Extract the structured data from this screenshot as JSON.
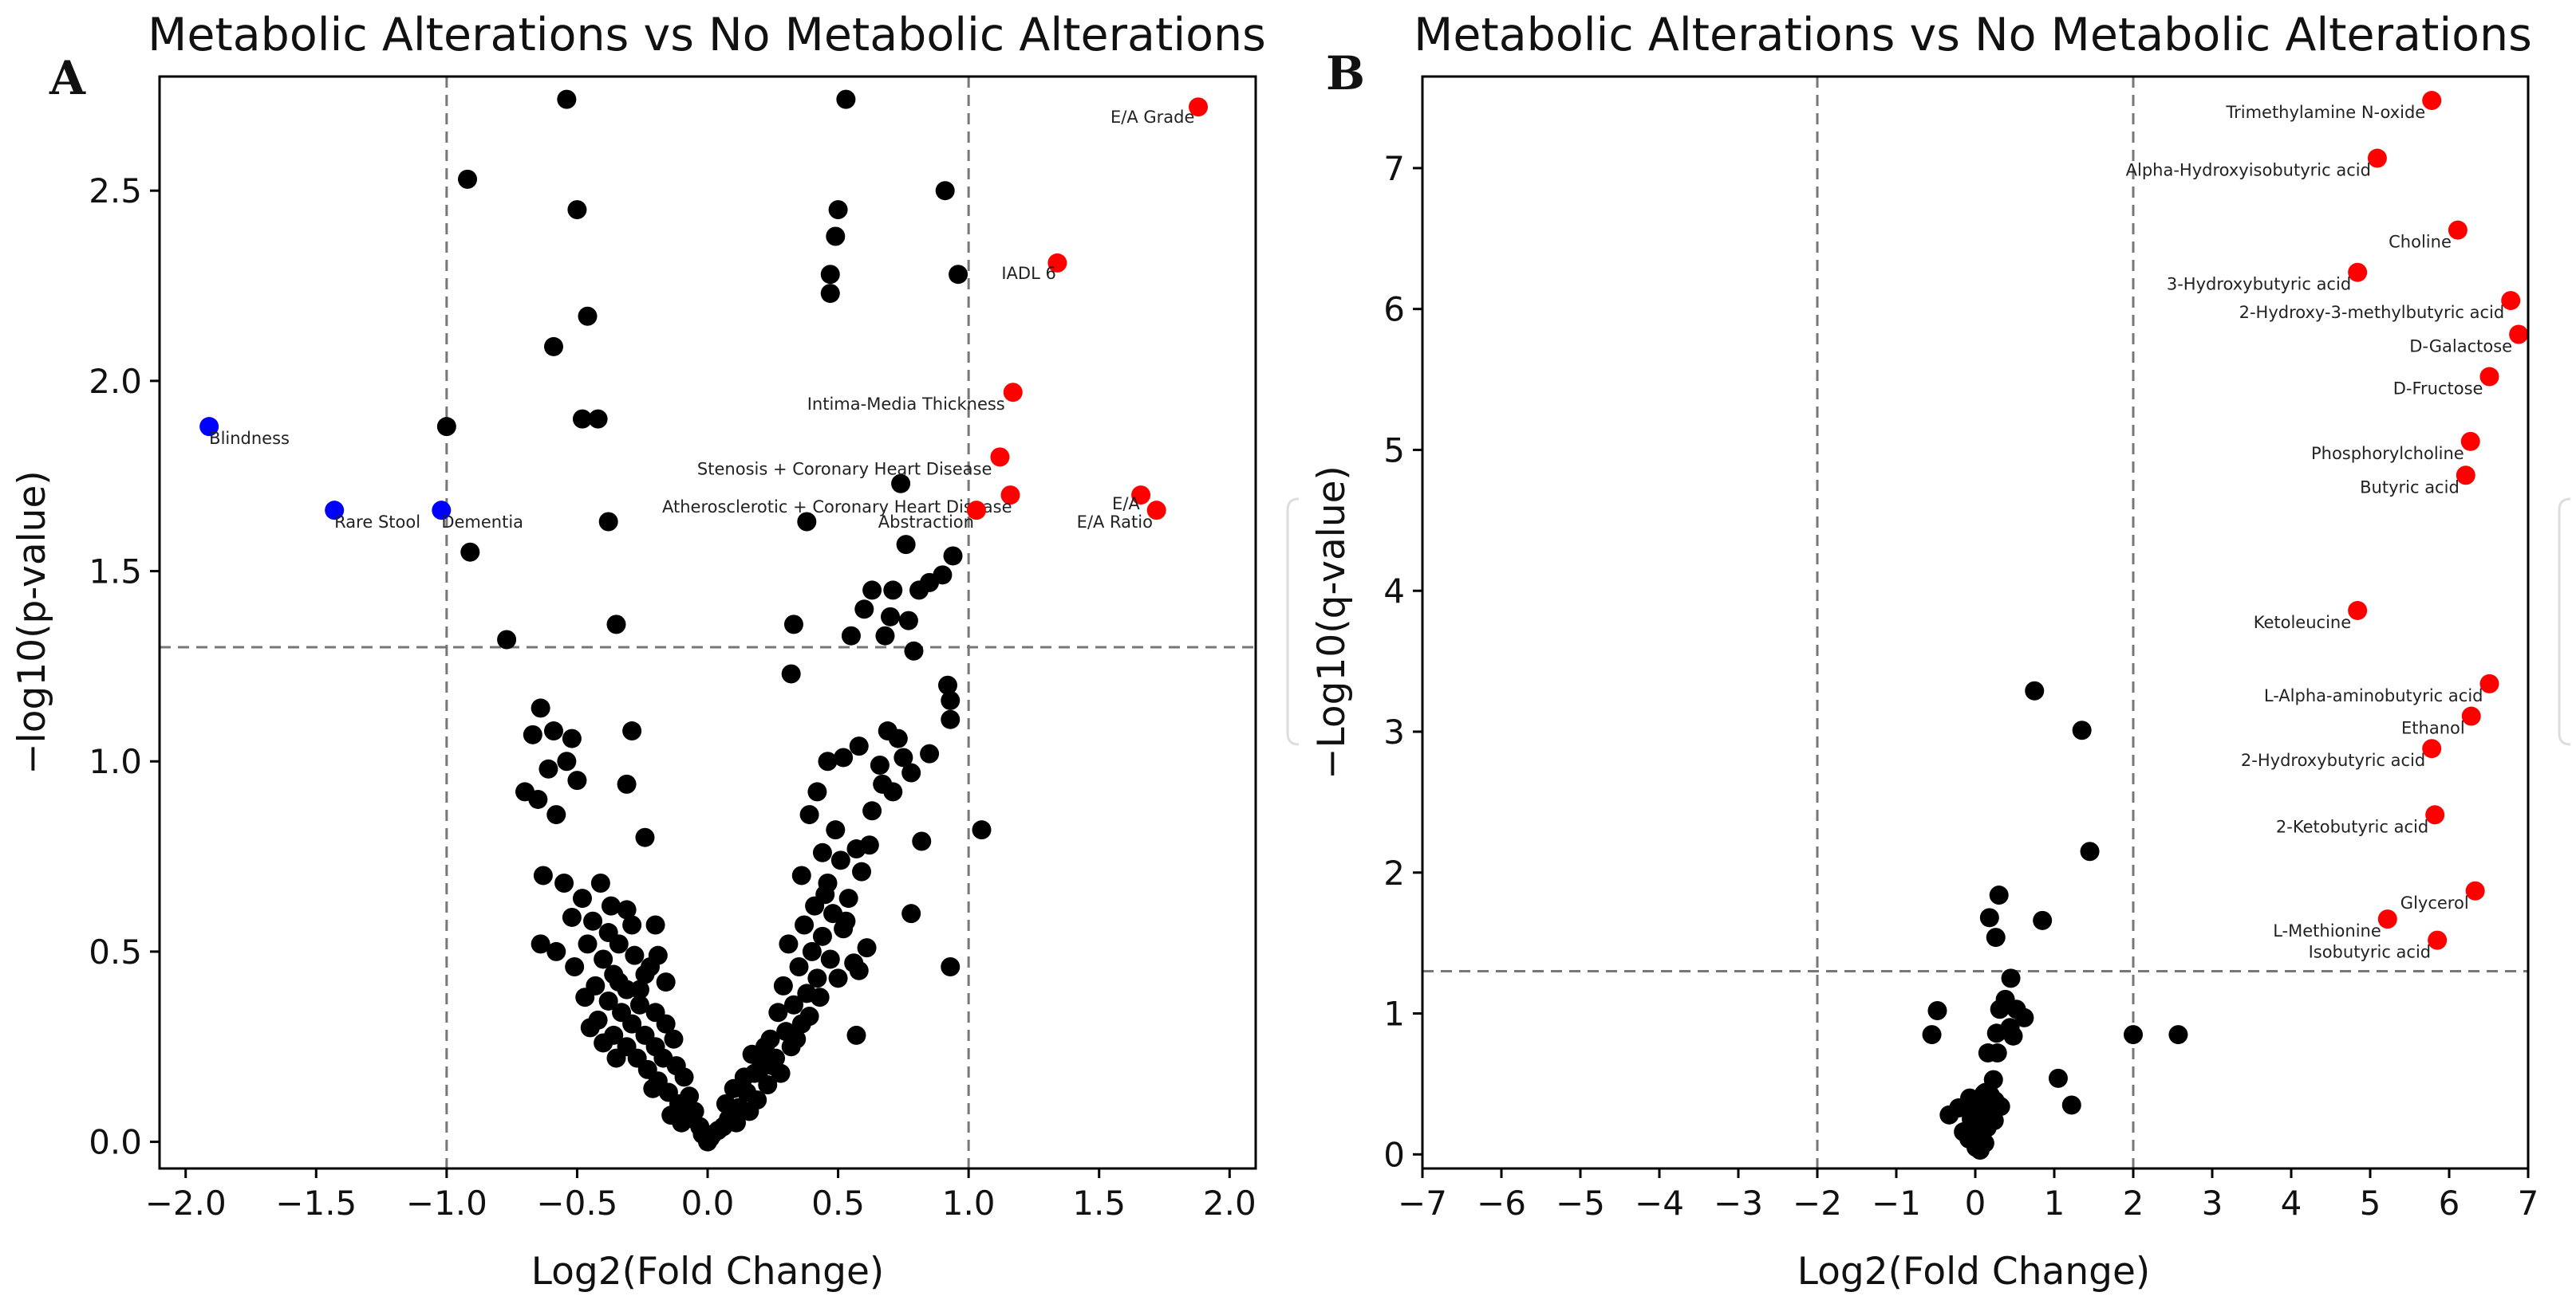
{
  "chart_data": [
    {
      "type": "scatter",
      "panel_label": "A",
      "title": "Metabolic Alterations vs No Metabolic Alterations",
      "xlabel": "Log2(Fold Change)",
      "ylabel": "−log10(p-value)",
      "xlim": [
        -2.1,
        2.1
      ],
      "ylim": [
        -0.07,
        2.8
      ],
      "xticks": [
        -2.0,
        -1.5,
        -1.0,
        -0.5,
        0.0,
        0.5,
        1.0,
        1.5,
        2.0
      ],
      "xtick_labels": [
        "−2.0",
        "−1.5",
        "−1.0",
        "−0.5",
        "0.0",
        "0.5",
        "1.0",
        "1.5",
        "2.0"
      ],
      "yticks": [
        0.0,
        0.5,
        1.0,
        1.5,
        2.0,
        2.5
      ],
      "ytick_labels": [
        "0.0",
        "0.5",
        "1.0",
        "1.5",
        "2.0",
        "2.5"
      ],
      "threshold_x": [
        -1.0,
        1.0
      ],
      "threshold_y": 1.3,
      "colors": {
        "up": "#ff0000",
        "down": "#0000ff",
        "ns": "#000000",
        "threshold": "#777777"
      },
      "labeled_points": [
        {
          "x": 1.88,
          "y": 2.72,
          "group": "up",
          "label": "E/A Grade"
        },
        {
          "x": 1.34,
          "y": 2.31,
          "group": "up",
          "label": "IADL 6"
        },
        {
          "x": 1.17,
          "y": 1.97,
          "group": "up",
          "label": "Intima-Media Thickness"
        },
        {
          "x": 1.12,
          "y": 1.8,
          "group": "up",
          "label": "Stenosis + Coronary Heart Disease"
        },
        {
          "x": 1.16,
          "y": 1.7,
          "group": "up",
          "label": "Atherosclerotic + Coronary Heart Disease"
        },
        {
          "x": 1.03,
          "y": 1.66,
          "group": "up",
          "label": "Abstraction"
        },
        {
          "x": 1.66,
          "y": 1.7,
          "group": "up",
          "label": "E/A"
        },
        {
          "x": 1.72,
          "y": 1.66,
          "group": "up",
          "label": "E/A Ratio"
        },
        {
          "x": -1.91,
          "y": 1.88,
          "group": "down",
          "label": "Blindness"
        },
        {
          "x": -1.43,
          "y": 1.66,
          "group": "down",
          "label": "Rare Stool"
        },
        {
          "x": -1.02,
          "y": 1.66,
          "group": "down",
          "label": "Dementia"
        }
      ],
      "other_points": [
        [
          -0.54,
          2.74
        ],
        [
          0.53,
          2.74
        ],
        [
          -0.92,
          2.53
        ],
        [
          0.91,
          2.5
        ],
        [
          -0.5,
          2.45
        ],
        [
          0.5,
          2.45
        ],
        [
          0.49,
          2.38
        ],
        [
          -0.46,
          2.17
        ],
        [
          0.47,
          2.28
        ],
        [
          0.96,
          2.28
        ],
        [
          0.47,
          2.23
        ],
        [
          -0.59,
          2.09
        ],
        [
          -1.0,
          1.88
        ],
        [
          -0.48,
          1.9
        ],
        [
          -0.42,
          1.9
        ],
        [
          0.74,
          1.73
        ],
        [
          -0.38,
          1.63
        ],
        [
          0.38,
          1.63
        ],
        [
          -0.91,
          1.55
        ],
        [
          0.94,
          1.54
        ],
        [
          0.76,
          1.57
        ],
        [
          0.9,
          1.49
        ],
        [
          0.85,
          1.47
        ],
        [
          0.81,
          1.45
        ],
        [
          0.71,
          1.45
        ],
        [
          0.63,
          1.45
        ],
        [
          0.6,
          1.4
        ],
        [
          0.7,
          1.38
        ],
        [
          0.77,
          1.37
        ],
        [
          0.68,
          1.33
        ],
        [
          0.55,
          1.33
        ],
        [
          -0.77,
          1.32
        ],
        [
          -0.35,
          1.36
        ],
        [
          0.33,
          1.36
        ],
        [
          0.79,
          1.29
        ],
        [
          0.32,
          1.23
        ],
        [
          0.92,
          1.2
        ],
        [
          0.93,
          1.16
        ],
        [
          0.93,
          1.11
        ],
        [
          0.69,
          1.08
        ],
        [
          0.58,
          1.04
        ],
        [
          0.73,
          1.06
        ],
        [
          0.85,
          1.02
        ],
        [
          0.52,
          1.01
        ],
        [
          0.46,
          1.0
        ],
        [
          0.66,
          0.99
        ],
        [
          0.78,
          0.97
        ],
        [
          0.42,
          0.92
        ],
        [
          0.71,
          0.92
        ],
        [
          0.39,
          0.86
        ],
        [
          0.63,
          0.87
        ],
        [
          0.49,
          0.82
        ],
        [
          0.57,
          0.77
        ],
        [
          0.44,
          0.76
        ],
        [
          0.51,
          0.74
        ],
        [
          0.59,
          0.71
        ],
        [
          0.36,
          0.7
        ],
        [
          0.46,
          0.68
        ],
        [
          0.54,
          0.64
        ],
        [
          0.41,
          0.62
        ],
        [
          0.48,
          0.6
        ],
        [
          0.37,
          0.57
        ],
        [
          0.52,
          0.56
        ],
        [
          0.44,
          0.54
        ],
        [
          0.31,
          0.52
        ],
        [
          0.4,
          0.5
        ],
        [
          0.47,
          0.48
        ],
        [
          0.35,
          0.46
        ],
        [
          0.42,
          0.43
        ],
        [
          0.29,
          0.41
        ],
        [
          0.38,
          0.39
        ],
        [
          0.33,
          0.36
        ],
        [
          0.27,
          0.34
        ],
        [
          0.36,
          0.31
        ],
        [
          0.3,
          0.29
        ],
        [
          0.24,
          0.27
        ],
        [
          0.32,
          0.25
        ],
        [
          0.26,
          0.22
        ],
        [
          0.21,
          0.21
        ],
        [
          0.28,
          0.18
        ],
        [
          0.18,
          0.18
        ],
        [
          0.23,
          0.15
        ],
        [
          0.15,
          0.13
        ],
        [
          0.19,
          0.11
        ],
        [
          0.12,
          0.09
        ],
        [
          0.16,
          0.08
        ],
        [
          0.08,
          0.06
        ],
        [
          0.11,
          0.05
        ],
        [
          0.06,
          0.04
        ],
        [
          0.04,
          0.03
        ],
        [
          0.02,
          0.02
        ],
        [
          0.01,
          0.01
        ],
        [
          0.0,
          0.0
        ],
        [
          0.07,
          0.1
        ],
        [
          0.1,
          0.14
        ],
        [
          0.14,
          0.17
        ],
        [
          0.2,
          0.19
        ],
        [
          0.25,
          0.2
        ],
        [
          0.17,
          0.23
        ],
        [
          0.22,
          0.25
        ],
        [
          0.34,
          0.27
        ],
        [
          0.39,
          0.33
        ],
        [
          0.43,
          0.38
        ],
        [
          0.5,
          0.43
        ],
        [
          0.56,
          0.47
        ],
        [
          0.61,
          0.51
        ],
        [
          0.53,
          0.58
        ],
        [
          0.45,
          0.65
        ],
        [
          0.62,
          0.78
        ],
        [
          0.67,
          0.94
        ],
        [
          0.75,
          1.01
        ],
        [
          0.82,
          0.79
        ],
        [
          1.05,
          0.82
        ],
        [
          0.93,
          0.46
        ],
        [
          0.78,
          0.6
        ],
        [
          0.58,
          0.45
        ],
        [
          0.57,
          0.28
        ],
        [
          -0.64,
          1.14
        ],
        [
          -0.67,
          1.07
        ],
        [
          -0.59,
          1.08
        ],
        [
          -0.52,
          1.06
        ],
        [
          -0.29,
          1.08
        ],
        [
          -0.54,
          1.0
        ],
        [
          -0.61,
          0.98
        ],
        [
          -0.7,
          0.92
        ],
        [
          -0.5,
          0.95
        ],
        [
          -0.31,
          0.94
        ],
        [
          -0.65,
          0.9
        ],
        [
          -0.58,
          0.86
        ],
        [
          -0.24,
          0.8
        ],
        [
          -0.63,
          0.7
        ],
        [
          -0.55,
          0.68
        ],
        [
          -0.41,
          0.68
        ],
        [
          -0.48,
          0.64
        ],
        [
          -0.37,
          0.62
        ],
        [
          -0.31,
          0.61
        ],
        [
          -0.52,
          0.59
        ],
        [
          -0.44,
          0.58
        ],
        [
          -0.29,
          0.57
        ],
        [
          -0.38,
          0.55
        ],
        [
          -0.2,
          0.57
        ],
        [
          -0.46,
          0.52
        ],
        [
          -0.34,
          0.52
        ],
        [
          -0.64,
          0.52
        ],
        [
          -0.58,
          0.5
        ],
        [
          -0.28,
          0.49
        ],
        [
          -0.4,
          0.48
        ],
        [
          -0.19,
          0.49
        ],
        [
          -0.51,
          0.46
        ],
        [
          -0.36,
          0.44
        ],
        [
          -0.24,
          0.44
        ],
        [
          -0.43,
          0.41
        ],
        [
          -0.31,
          0.4
        ],
        [
          -0.16,
          0.42
        ],
        [
          -0.47,
          0.38
        ],
        [
          -0.38,
          0.37
        ],
        [
          -0.26,
          0.36
        ],
        [
          -0.33,
          0.34
        ],
        [
          -0.2,
          0.34
        ],
        [
          -0.42,
          0.32
        ],
        [
          -0.29,
          0.31
        ],
        [
          -0.16,
          0.31
        ],
        [
          -0.36,
          0.28
        ],
        [
          -0.24,
          0.28
        ],
        [
          -0.31,
          0.25
        ],
        [
          -0.2,
          0.25
        ],
        [
          -0.13,
          0.27
        ],
        [
          -0.27,
          0.22
        ],
        [
          -0.17,
          0.22
        ],
        [
          -0.23,
          0.19
        ],
        [
          -0.12,
          0.2
        ],
        [
          -0.19,
          0.16
        ],
        [
          -0.09,
          0.17
        ],
        [
          -0.15,
          0.13
        ],
        [
          -0.07,
          0.12
        ],
        [
          -0.11,
          0.1
        ],
        [
          -0.05,
          0.08
        ],
        [
          -0.08,
          0.06
        ],
        [
          -0.03,
          0.04
        ],
        [
          -0.02,
          0.02
        ],
        [
          -0.22,
          0.46
        ],
        [
          -0.26,
          0.4
        ],
        [
          -0.34,
          0.42
        ],
        [
          -0.4,
          0.26
        ],
        [
          -0.45,
          0.3
        ],
        [
          -0.35,
          0.22
        ],
        [
          -0.21,
          0.14
        ],
        [
          -0.14,
          0.07
        ],
        [
          -0.1,
          0.05
        ]
      ]
    },
    {
      "type": "scatter",
      "panel_label": "B",
      "title": "Metabolic Alterations vs No Metabolic Alterations",
      "xlabel": "Log2(Fold Change)",
      "ylabel": "−Log10(q-value)",
      "xlim": [
        -7,
        7
      ],
      "ylim": [
        -0.1,
        7.65
      ],
      "xticks": [
        -7,
        -6,
        -5,
        -4,
        -3,
        -2,
        -1,
        0,
        1,
        2,
        3,
        4,
        5,
        6,
        7
      ],
      "xtick_labels": [
        "−7",
        "−6",
        "−5",
        "−4",
        "−3",
        "−2",
        "−1",
        "0",
        "1",
        "2",
        "3",
        "4",
        "5",
        "6",
        "7"
      ],
      "yticks": [
        0,
        1,
        2,
        3,
        4,
        5,
        6,
        7
      ],
      "ytick_labels": [
        "0",
        "1",
        "2",
        "3",
        "4",
        "5",
        "6",
        "7"
      ],
      "threshold_x": [
        -2,
        2
      ],
      "threshold_y": 1.3,
      "colors": {
        "up": "#ff0000",
        "down": "#0000ff",
        "ns": "#000000",
        "threshold": "#777777"
      },
      "labeled_points": [
        {
          "x": 5.78,
          "y": 7.48,
          "group": "up",
          "label": "Trimethylamine N-oxide"
        },
        {
          "x": 5.09,
          "y": 7.07,
          "group": "up",
          "label": "Alpha-Hydroxyisobutyric acid"
        },
        {
          "x": 6.11,
          "y": 6.56,
          "group": "up",
          "label": "Choline"
        },
        {
          "x": 4.84,
          "y": 6.26,
          "group": "up",
          "label": "3-Hydroxybutyric acid"
        },
        {
          "x": 6.78,
          "y": 6.06,
          "group": "up",
          "label": "2-Hydroxy-3-methylbutyric acid"
        },
        {
          "x": 6.88,
          "y": 5.82,
          "group": "up",
          "label": "D-Galactose"
        },
        {
          "x": 6.51,
          "y": 5.52,
          "group": "up",
          "label": "D-Fructose"
        },
        {
          "x": 6.27,
          "y": 5.06,
          "group": "up",
          "label": "Phosphorylcholine"
        },
        {
          "x": 6.21,
          "y": 4.82,
          "group": "up",
          "label": "Butyric acid"
        },
        {
          "x": 4.84,
          "y": 3.86,
          "group": "up",
          "label": "Ketoleucine"
        },
        {
          "x": 6.51,
          "y": 3.34,
          "group": "up",
          "label": "L-Alpha-aminobutyric acid"
        },
        {
          "x": 6.28,
          "y": 3.11,
          "group": "up",
          "label": "Ethanol"
        },
        {
          "x": 5.78,
          "y": 2.88,
          "group": "up",
          "label": "2-Hydroxybutyric acid"
        },
        {
          "x": 5.82,
          "y": 2.41,
          "group": "up",
          "label": "2-Ketobutyric acid"
        },
        {
          "x": 6.33,
          "y": 1.87,
          "group": "up",
          "label": "Glycerol"
        },
        {
          "x": 5.22,
          "y": 1.67,
          "group": "up",
          "label": "L-Methionine"
        },
        {
          "x": 5.85,
          "y": 1.52,
          "group": "up",
          "label": "Isobutyric acid"
        }
      ],
      "other_points": [
        [
          0.75,
          3.29
        ],
        [
          1.35,
          3.01
        ],
        [
          1.45,
          2.15
        ],
        [
          0.3,
          1.84
        ],
        [
          0.85,
          1.66
        ],
        [
          0.18,
          1.68
        ],
        [
          0.26,
          1.54
        ],
        [
          0.45,
          1.25
        ],
        [
          0.38,
          1.1
        ],
        [
          0.31,
          1.03
        ],
        [
          0.52,
          1.03
        ],
        [
          0.62,
          0.97
        ],
        [
          0.44,
          0.9
        ],
        [
          0.27,
          0.86
        ],
        [
          0.48,
          0.84
        ],
        [
          -0.48,
          1.02
        ],
        [
          -0.55,
          0.85
        ],
        [
          2.0,
          0.85
        ],
        [
          2.57,
          0.85
        ],
        [
          0.16,
          0.72
        ],
        [
          0.28,
          0.72
        ],
        [
          1.05,
          0.54
        ],
        [
          0.23,
          0.53
        ],
        [
          0.11,
          0.43
        ],
        [
          0.19,
          0.42
        ],
        [
          0.25,
          0.38
        ],
        [
          -0.07,
          0.4
        ],
        [
          0.04,
          0.38
        ],
        [
          1.22,
          0.35
        ],
        [
          0.32,
          0.34
        ],
        [
          -0.21,
          0.33
        ],
        [
          -0.11,
          0.35
        ],
        [
          0.19,
          0.31
        ],
        [
          -0.33,
          0.28
        ],
        [
          0.07,
          0.27
        ],
        [
          0.24,
          0.24
        ],
        [
          -0.02,
          0.21
        ],
        [
          0.15,
          0.19
        ],
        [
          -0.15,
          0.16
        ],
        [
          0.09,
          0.15
        ],
        [
          -0.08,
          0.11
        ],
        [
          0.04,
          0.1
        ],
        [
          0.12,
          0.08
        ],
        [
          0.01,
          0.05
        ],
        [
          0.06,
          0.03
        ],
        [
          0.08,
          0.18
        ],
        [
          -0.05,
          0.25
        ],
        [
          0.13,
          0.44
        ]
      ]
    }
  ]
}
